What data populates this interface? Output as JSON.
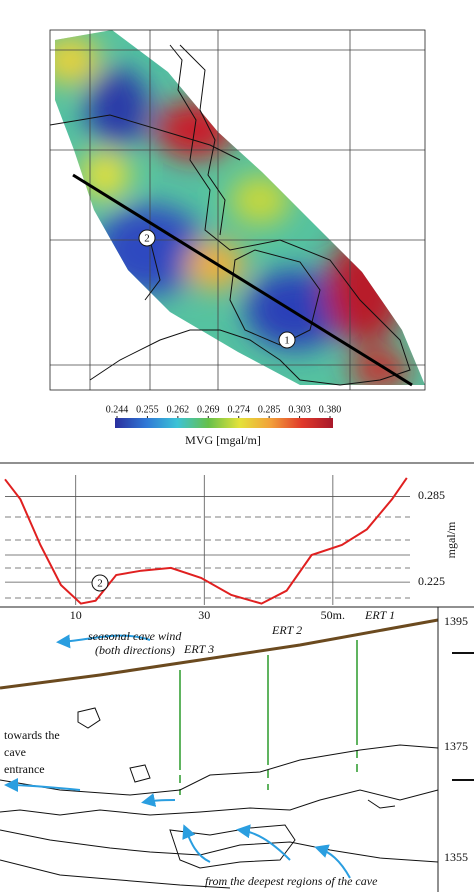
{
  "chart_data": [
    {
      "type": "heatmap",
      "annotations": [
        "2",
        "1"
      ],
      "colorbar": {
        "ticks": [
          0.244,
          0.255,
          0.262,
          0.269,
          0.274,
          0.285,
          0.303,
          {
            "value": 0.38,
            "label": "0.380"
          }
        ],
        "colors": [
          "#2a2f9e",
          "#2f78d6",
          "#3cc3d6",
          "#66c04a",
          "#e4e23a",
          "#f2a03a",
          "#e0392a",
          "#a8182a"
        ],
        "label": "MVG [mgal/m]"
      }
    },
    {
      "type": "line",
      "x": [
        -1,
        1.4,
        4.5,
        7.7,
        10.8,
        13.1,
        16.3,
        20.2,
        24.8,
        29.5,
        34.2,
        38.9,
        42.8,
        46.7,
        51.4,
        55.3,
        59.2,
        61.5
      ],
      "values": [
        0.297,
        0.283,
        0.251,
        0.223,
        0.21,
        0.212,
        0.23,
        0.233,
        0.235,
        0.228,
        0.216,
        0.21,
        0.219,
        0.244,
        0.251,
        0.262,
        0.283,
        0.298
      ],
      "color": "#e02020",
      "xlim": [
        -1,
        62
      ],
      "xticks": [
        10,
        30,
        {
          "value": 50,
          "label": "50m."
        }
      ],
      "ylim": [
        0.209,
        0.3
      ],
      "yticks": [
        0.225,
        0.285
      ],
      "y_label": "mgal/m",
      "annotation": "2",
      "grid": true
    }
  ],
  "section": {
    "wind": [
      "seasonal cave wind",
      "(both directions)"
    ],
    "ert": [
      "ERT 1",
      "ERT 2",
      "ERT 3"
    ],
    "entrance": [
      "towards the",
      "cave",
      "entrance"
    ],
    "deep": "from the deepest regions of the cave",
    "elevations": [
      "1395",
      "1375",
      "1355"
    ]
  }
}
